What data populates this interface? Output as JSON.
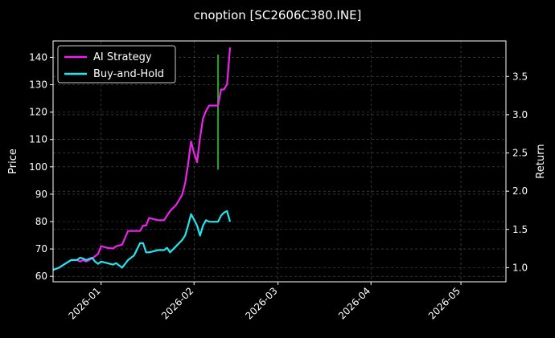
{
  "chart_data": {
    "type": "line",
    "title": "cnoption [SC2606C380.INE]",
    "ylabel_left": "Price",
    "ylabel_right": "Return",
    "x_axis_type": "date",
    "xlim": [
      "2025-12-16",
      "2026-05-16"
    ],
    "ylim_left": [
      58,
      146
    ],
    "ylim_right": [
      0.815,
      3.965
    ],
    "xticks": [
      "2026-01",
      "2026-02",
      "2026-03",
      "2026-04",
      "2026-05"
    ],
    "yticks_left": [
      60,
      70,
      80,
      90,
      100,
      110,
      120,
      130,
      140
    ],
    "yticks_right": [
      1.0,
      1.5,
      2.0,
      2.5,
      3.0,
      3.5
    ],
    "legend_position": "upper-left",
    "grid": true,
    "colors": {
      "background": "#000000",
      "ai_strategy": "#ee22ee",
      "buy_and_hold": "#22e6ee",
      "signal_line": "#22aa22",
      "grid": "#555555"
    },
    "series": [
      {
        "name": "AI Strategy",
        "axis": "right",
        "x": [
          "2025-12-16",
          "2025-12-18",
          "2025-12-20",
          "2025-12-22",
          "2025-12-24",
          "2025-12-25",
          "2025-12-26",
          "2025-12-27",
          "2025-12-29",
          "2025-12-30",
          "2025-12-31",
          "2026-01-01",
          "2026-01-03",
          "2026-01-05",
          "2026-01-06",
          "2026-01-08",
          "2026-01-10",
          "2026-01-12",
          "2026-01-14",
          "2026-01-15",
          "2026-01-16",
          "2026-01-17",
          "2026-01-18",
          "2026-01-20",
          "2026-01-22",
          "2026-01-24",
          "2026-01-26",
          "2026-01-28",
          "2026-01-29",
          "2026-01-30",
          "2026-01-31",
          "2026-02-01",
          "2026-02-02",
          "2026-02-03",
          "2026-02-04",
          "2026-02-05",
          "2026-02-06",
          "2026-02-07",
          "2026-02-08",
          "2026-02-09",
          "2026-02-10",
          "2026-02-11",
          "2026-02-12",
          "2026-02-13"
        ],
        "values": [
          0.97,
          1.0,
          1.05,
          1.1,
          1.1,
          1.08,
          1.1,
          1.08,
          1.12,
          1.15,
          1.18,
          1.28,
          1.26,
          1.25,
          1.28,
          1.3,
          1.48,
          1.48,
          1.48,
          1.55,
          1.55,
          1.65,
          1.64,
          1.62,
          1.62,
          1.74,
          1.82,
          1.95,
          2.1,
          2.35,
          2.65,
          2.5,
          2.38,
          2.7,
          2.95,
          3.05,
          3.12,
          3.12,
          3.12,
          3.12,
          3.33,
          3.33,
          3.4,
          3.88
        ]
      },
      {
        "name": "Buy-and-Hold",
        "axis": "right",
        "x": [
          "2025-12-16",
          "2025-12-18",
          "2025-12-20",
          "2025-12-22",
          "2025-12-24",
          "2025-12-25",
          "2025-12-26",
          "2025-12-27",
          "2025-12-29",
          "2025-12-30",
          "2025-12-31",
          "2026-01-01",
          "2026-01-03",
          "2026-01-05",
          "2026-01-06",
          "2026-01-08",
          "2026-01-10",
          "2026-01-12",
          "2026-01-14",
          "2026-01-15",
          "2026-01-16",
          "2026-01-17",
          "2026-01-18",
          "2026-01-20",
          "2026-01-22",
          "2026-01-23",
          "2026-01-24",
          "2026-01-26",
          "2026-01-28",
          "2026-01-29",
          "2026-01-30",
          "2026-01-31",
          "2026-02-01",
          "2026-02-02",
          "2026-02-03",
          "2026-02-04",
          "2026-02-05",
          "2026-02-06",
          "2026-02-07",
          "2026-02-08",
          "2026-02-09",
          "2026-02-10",
          "2026-02-11",
          "2026-02-12",
          "2026-02-13"
        ],
        "values": [
          0.97,
          1.0,
          1.05,
          1.1,
          1.1,
          1.13,
          1.12,
          1.1,
          1.13,
          1.08,
          1.05,
          1.08,
          1.06,
          1.04,
          1.06,
          1.0,
          1.1,
          1.16,
          1.32,
          1.32,
          1.2,
          1.2,
          1.21,
          1.23,
          1.23,
          1.26,
          1.2,
          1.28,
          1.36,
          1.42,
          1.55,
          1.7,
          1.63,
          1.55,
          1.42,
          1.55,
          1.62,
          1.6,
          1.6,
          1.6,
          1.6,
          1.68,
          1.72,
          1.74,
          1.6
        ]
      }
    ],
    "signal_line": {
      "x": "2026-02-09",
      "ylim_left": [
        99,
        141
      ]
    }
  }
}
